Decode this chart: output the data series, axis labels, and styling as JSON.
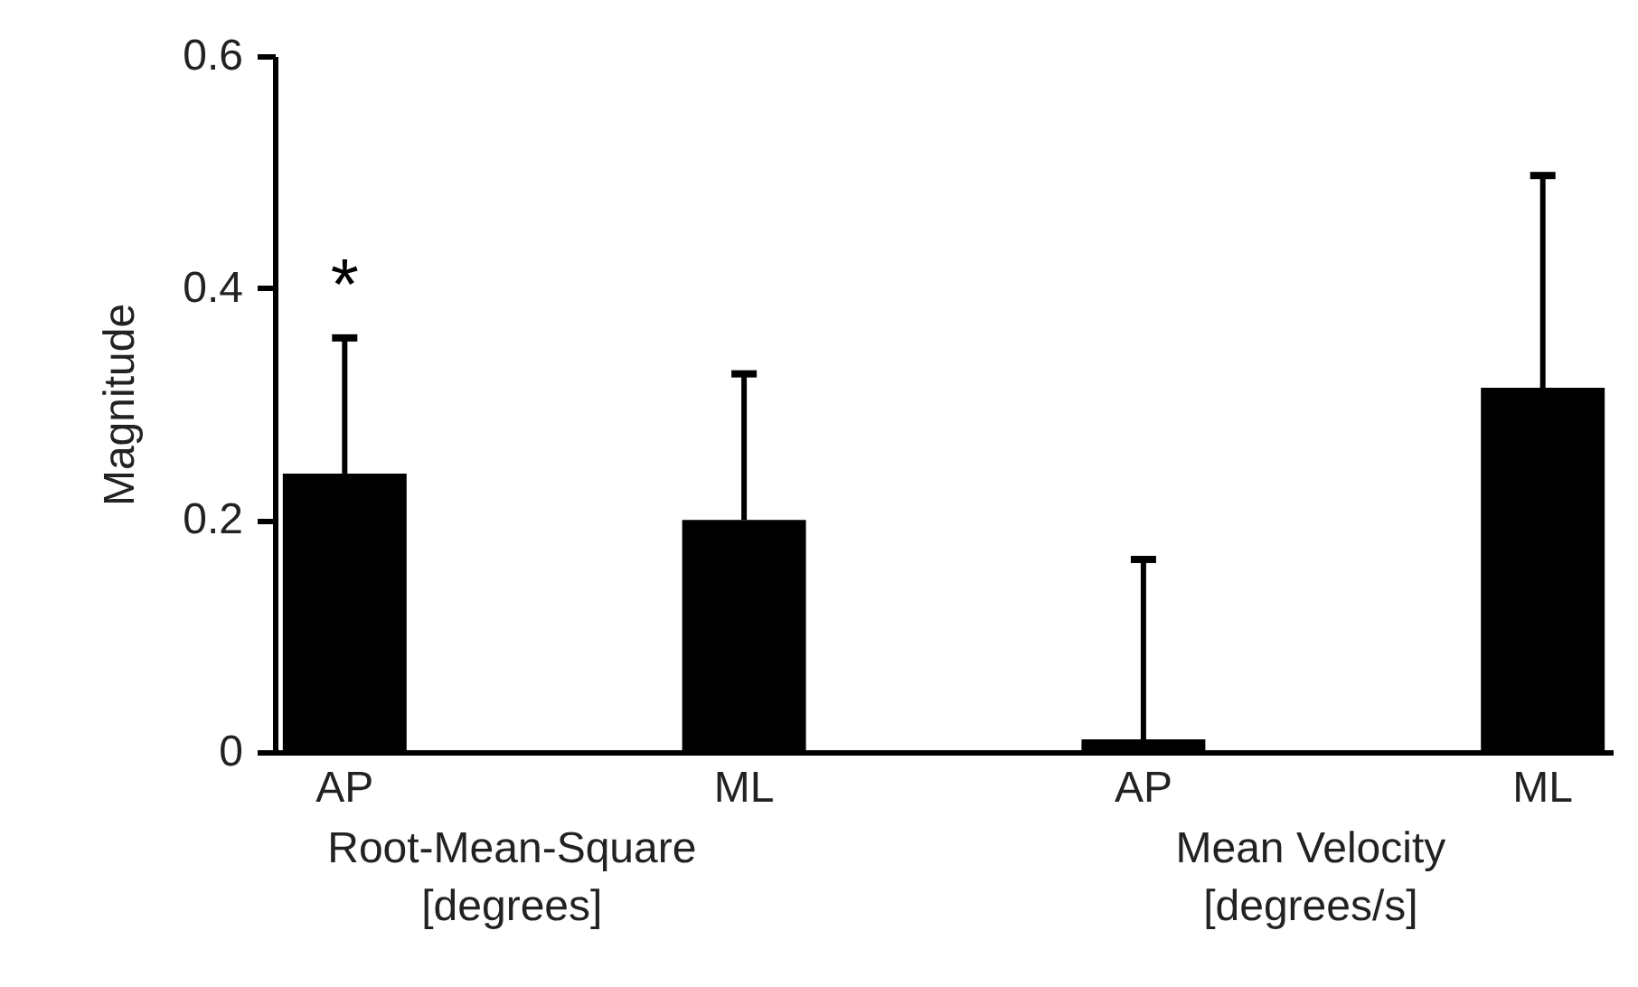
{
  "chart_data": {
    "type": "bar",
    "ylabel": "Magnitude",
    "categories": [
      "AP",
      "ML",
      "AP",
      "ML"
    ],
    "values": [
      0.24,
      0.2,
      0.011,
      0.314
    ],
    "color": "#000000",
    "errors": [
      [
        0.24,
        0.357
      ],
      [
        0.2,
        0.326
      ],
      [
        0.011,
        0.166
      ],
      [
        0.314,
        0.497
      ]
    ],
    "ylim": [
      0,
      0.6
    ],
    "yticks": [
      0,
      0.2,
      0.4,
      0.6
    ],
    "grid": false,
    "annotations": [
      "*",
      "Root-Mean-Square\n[degrees]",
      "Mean Velocity\n[degrees/s]"
    ]
  }
}
